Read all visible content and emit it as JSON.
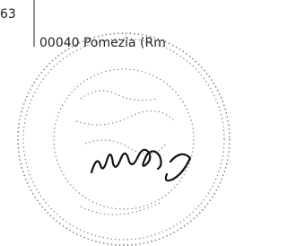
{
  "document": {
    "lines": [
      "63",
      "00040 Pomezia (Rm"
    ]
  }
}
